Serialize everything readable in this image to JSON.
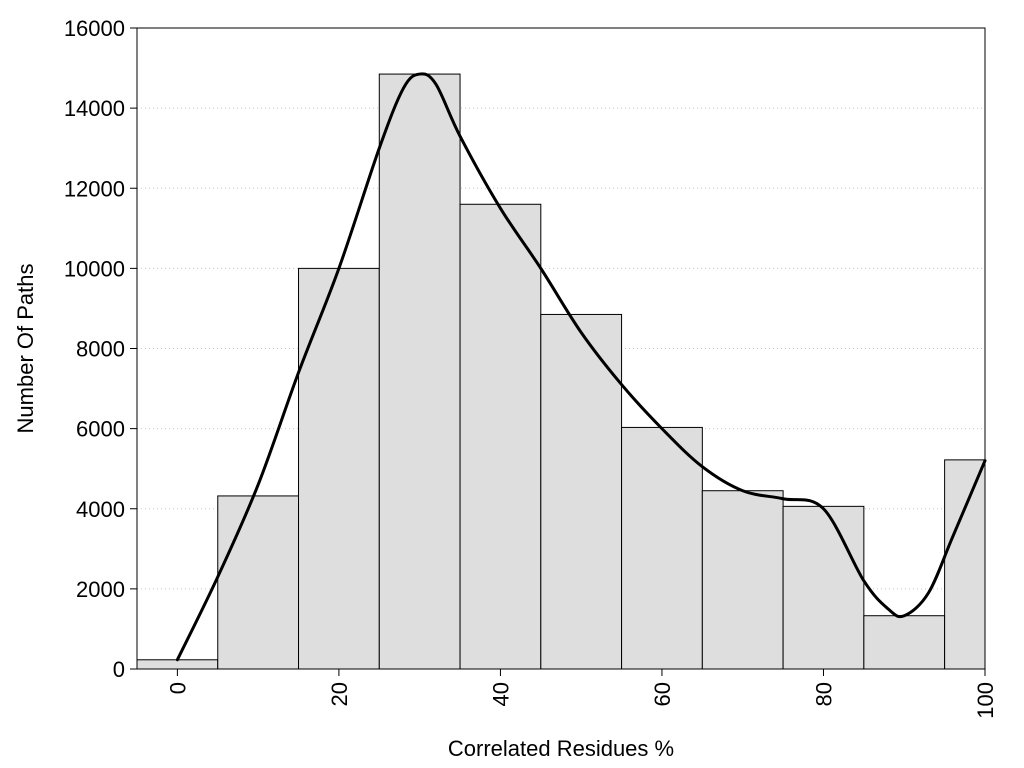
{
  "chart_data": {
    "type": "bar",
    "xlabel": "Correlated Residues %",
    "ylabel": "Number Of Paths",
    "xlim": [
      -5,
      100
    ],
    "ylim": [
      0,
      16000
    ],
    "grid": "horizontal dotted",
    "bar_color": "#dedede",
    "x_ticks": [
      0,
      20,
      40,
      60,
      80,
      100
    ],
    "y_ticks": [
      0,
      2000,
      4000,
      6000,
      8000,
      10000,
      12000,
      14000,
      16000
    ],
    "bin_width": 10,
    "bars": [
      {
        "x": 0,
        "value": 230
      },
      {
        "x": 10,
        "value": 4320
      },
      {
        "x": 20,
        "value": 10000
      },
      {
        "x": 30,
        "value": 14850
      },
      {
        "x": 40,
        "value": 11600
      },
      {
        "x": 50,
        "value": 8850
      },
      {
        "x": 60,
        "value": 6030
      },
      {
        "x": 70,
        "value": 4450
      },
      {
        "x": 80,
        "value": 4060
      },
      {
        "x": 90,
        "value": 1330
      },
      {
        "x": 100,
        "value": 5220
      }
    ],
    "smooth_curve": {
      "x": [
        0,
        5,
        10,
        15,
        20,
        25,
        28,
        30,
        32,
        35,
        40,
        45,
        50,
        55,
        60,
        65,
        70,
        75,
        80,
        85,
        88,
        90,
        93,
        96,
        100
      ],
      "y": [
        230,
        2300,
        4600,
        7400,
        10000,
        13000,
        14500,
        14850,
        14600,
        13300,
        11500,
        10000,
        8400,
        7100,
        6000,
        5050,
        4450,
        4250,
        4000,
        2200,
        1500,
        1330,
        1900,
        3300,
        5200
      ]
    }
  }
}
